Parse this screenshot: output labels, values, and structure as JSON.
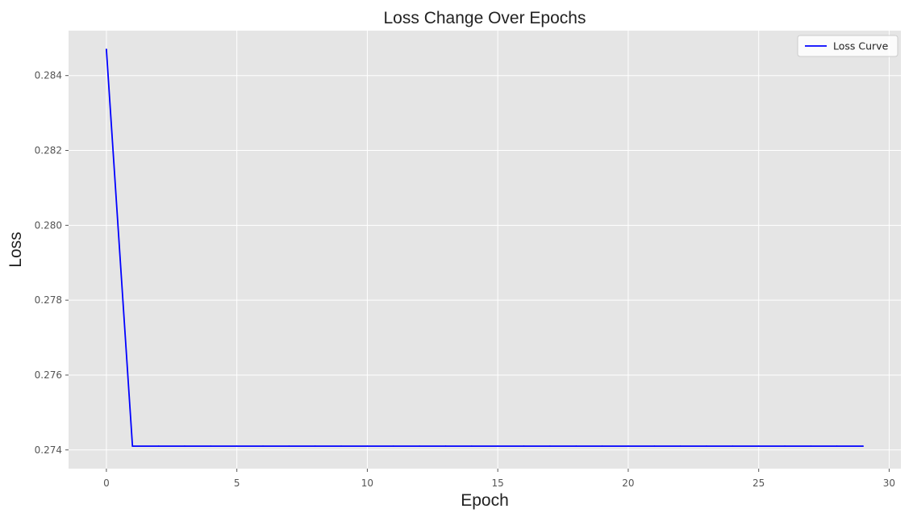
{
  "chart_data": {
    "type": "line",
    "title": "Loss Change Over Epochs",
    "xlabel": "Epoch",
    "ylabel": "Loss",
    "xlim": [
      -1.45,
      30.45
    ],
    "ylim": [
      0.2735,
      0.2852
    ],
    "x_ticks": [
      0,
      5,
      10,
      15,
      20,
      25,
      30
    ],
    "x_tick_labels": [
      "0",
      "5",
      "10",
      "15",
      "20",
      "25",
      "30"
    ],
    "y_ticks": [
      0.274,
      0.276,
      0.278,
      0.28,
      0.282,
      0.284
    ],
    "y_tick_labels": [
      "0.274",
      "0.276",
      "0.278",
      "0.280",
      "0.282",
      "0.284"
    ],
    "grid": true,
    "legend_position": "top-right",
    "background_color": "#e5e5e5",
    "grid_color": "#ffffff",
    "series": [
      {
        "name": "Loss Curve",
        "color": "#0000ff",
        "x": [
          0,
          1,
          2,
          3,
          4,
          5,
          6,
          7,
          8,
          9,
          10,
          11,
          12,
          13,
          14,
          15,
          16,
          17,
          18,
          19,
          20,
          21,
          22,
          23,
          24,
          25,
          26,
          27,
          28,
          29
        ],
        "y": [
          0.2847,
          0.2741,
          0.2741,
          0.2741,
          0.2741,
          0.2741,
          0.2741,
          0.2741,
          0.2741,
          0.2741,
          0.2741,
          0.2741,
          0.2741,
          0.2741,
          0.2741,
          0.2741,
          0.2741,
          0.2741,
          0.2741,
          0.2741,
          0.2741,
          0.2741,
          0.2741,
          0.2741,
          0.2741,
          0.2741,
          0.2741,
          0.2741,
          0.2741,
          0.2741
        ]
      }
    ]
  }
}
